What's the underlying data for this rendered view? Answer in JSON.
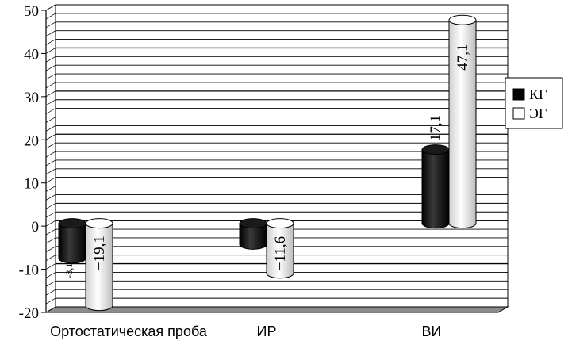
{
  "chart_data": {
    "type": "bar",
    "style": "3d-cylinder",
    "categories": [
      "Ортостатическая проба",
      "ИР",
      "ВИ"
    ],
    "series": [
      {
        "name": "КГ",
        "values": [
          -8.1,
          -4.9,
          17.1
        ],
        "color": "#000000"
      },
      {
        "name": "ЭГ",
        "values": [
          -19.1,
          -11.6,
          47.1
        ],
        "color": "#ffffff"
      }
    ],
    "data_labels": [
      [
        "-8,1",
        "",
        "17,1"
      ],
      [
        "−19,1",
        "−11,6",
        "47,1"
      ]
    ],
    "yticks": [
      "50",
      "40",
      "30",
      "20",
      "10",
      "0",
      "-10",
      "-20"
    ],
    "ylim": [
      -20,
      50
    ],
    "grid": true,
    "legend_position": "right"
  }
}
